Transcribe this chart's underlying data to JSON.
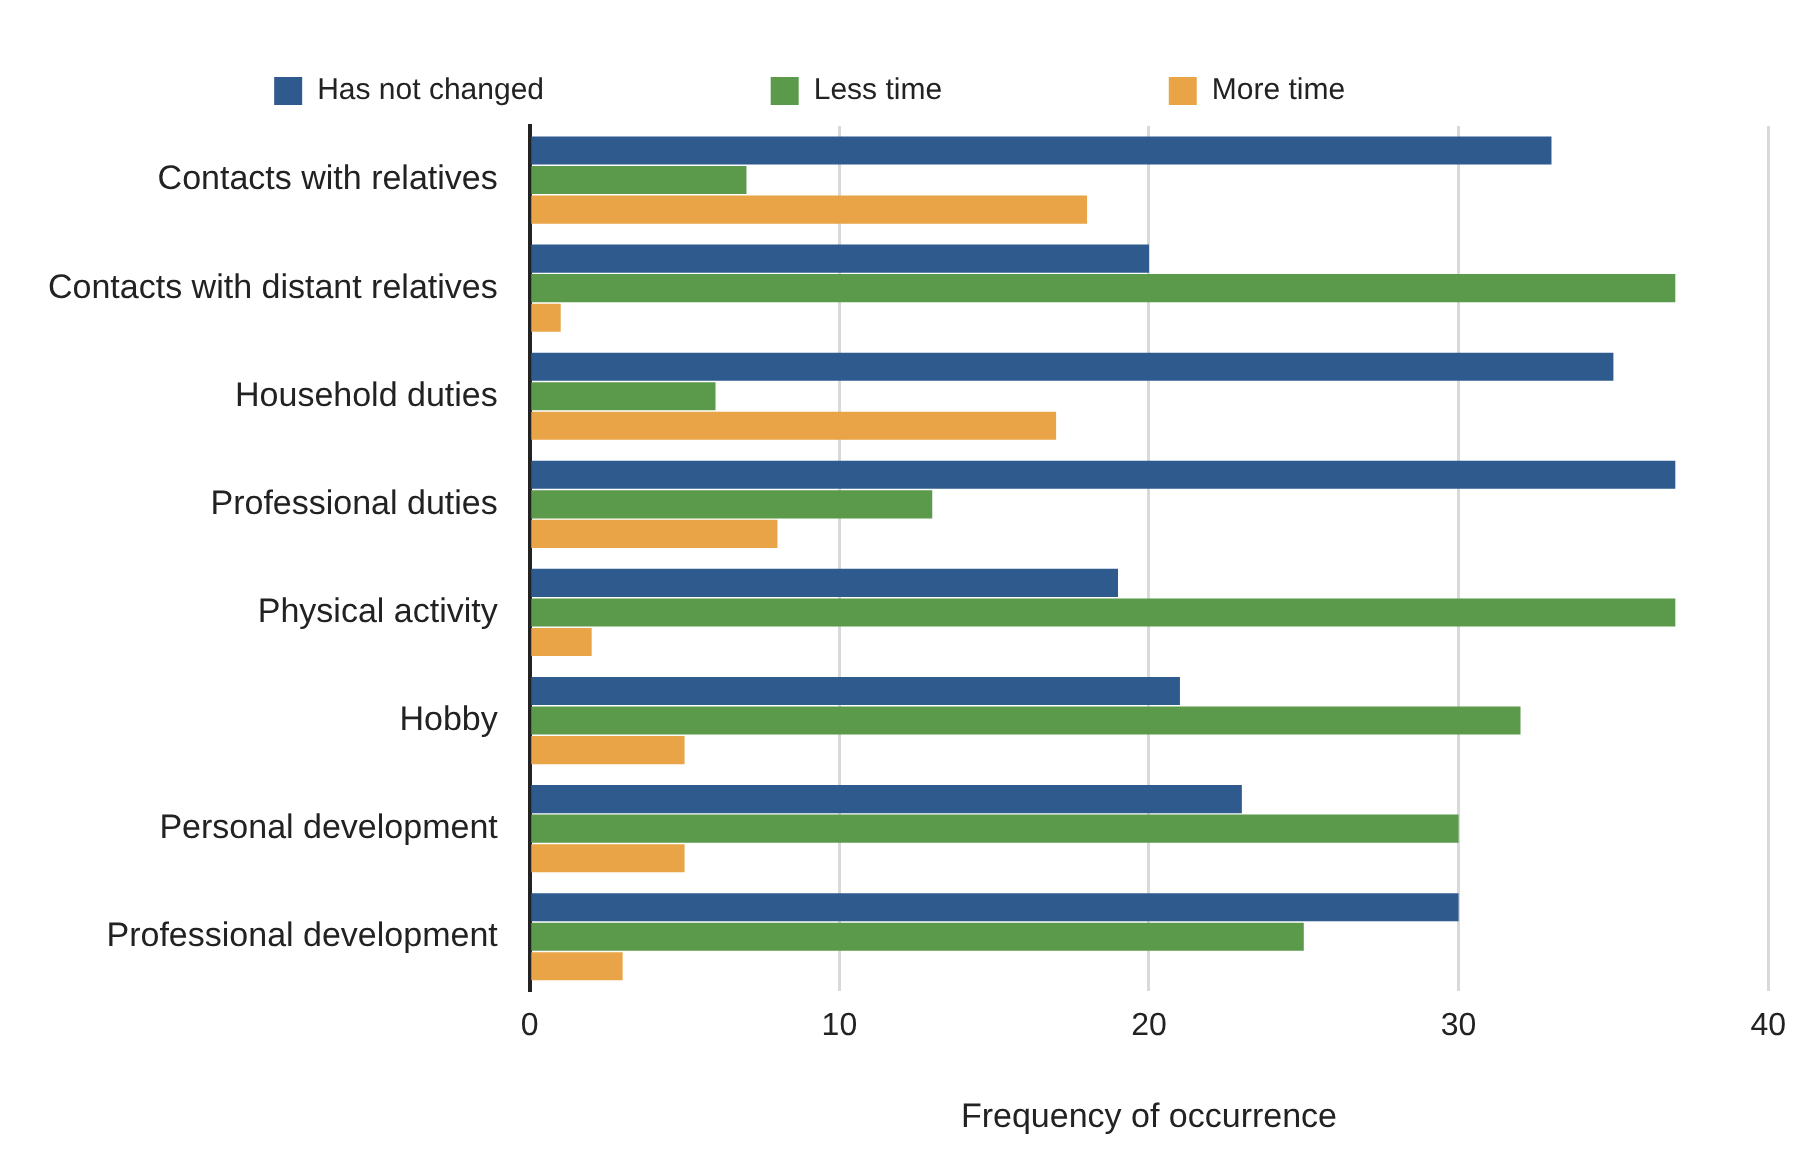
{
  "chart_data": {
    "type": "bar",
    "orientation": "horizontal",
    "xlabel": "Frequency of occurrence",
    "categories": [
      "Contacts with relatives",
      "Contacts with distant relatives",
      "Household duties",
      "Professional duties",
      "Physical activity",
      "Hobby",
      "Personal development",
      "Professional development"
    ],
    "series": [
      {
        "name": "Has not changed",
        "color": "#2e5a8e",
        "values": [
          33,
          20,
          35,
          37,
          19,
          21,
          23,
          30
        ]
      },
      {
        "name": "Less time",
        "color": "#5b9a4b",
        "values": [
          7,
          37,
          6,
          13,
          37,
          32,
          30,
          25
        ]
      },
      {
        "name": "More time",
        "color": "#e8a446",
        "values": [
          18,
          1,
          17,
          8,
          2,
          5,
          5,
          3
        ]
      }
    ],
    "xlim": [
      0,
      40
    ],
    "xticks": [
      0,
      10,
      20,
      30,
      40
    ],
    "grid": "x",
    "legend": "top"
  }
}
